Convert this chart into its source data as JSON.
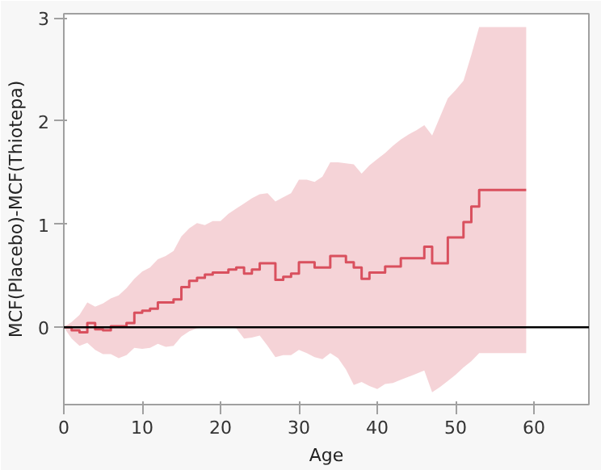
{
  "chart_data": {
    "type": "step",
    "xlabel": "Age",
    "ylabel": "MCF(Placebo)-MCF(Thiotepa)",
    "x": [
      0,
      1,
      2,
      3,
      4,
      5,
      6,
      7,
      8,
      9,
      10,
      11,
      12,
      13,
      14,
      15,
      16,
      17,
      18,
      19,
      20,
      21,
      22,
      23,
      24,
      25,
      26,
      27,
      28,
      29,
      30,
      31,
      32,
      33,
      34,
      35,
      36,
      37,
      38,
      39,
      40,
      41,
      42,
      43,
      44,
      45,
      46,
      47,
      48,
      49,
      50,
      51,
      52,
      53,
      54,
      55,
      56,
      57,
      58,
      59
    ],
    "series": [
      {
        "color": "#d9505e",
        "values": [
          0,
          -0.03,
          -0.05,
          0.04,
          -0.02,
          -0.03,
          0.01,
          0.01,
          0.04,
          0.14,
          0.16,
          0.18,
          0.24,
          0.24,
          0.27,
          0.39,
          0.45,
          0.48,
          0.51,
          0.53,
          0.53,
          0.56,
          0.58,
          0.52,
          0.56,
          0.62,
          0.62,
          0.46,
          0.49,
          0.52,
          0.63,
          0.63,
          0.58,
          0.58,
          0.69,
          0.69,
          0.63,
          0.58,
          0.47,
          0.53,
          0.53,
          0.59,
          0.59,
          0.67,
          0.67,
          0.67,
          0.78,
          0.62,
          0.62,
          0.87,
          0.87,
          1.02,
          1.17,
          1.33,
          1.33,
          1.33,
          1.33,
          1.33,
          1.33,
          1.33
        ],
        "upper": [
          0,
          0.05,
          0.12,
          0.24,
          0.2,
          0.23,
          0.28,
          0.31,
          0.38,
          0.47,
          0.54,
          0.58,
          0.66,
          0.69,
          0.74,
          0.88,
          0.96,
          1.01,
          0.99,
          1.03,
          1.03,
          1.1,
          1.15,
          1.2,
          1.25,
          1.29,
          1.3,
          1.22,
          1.26,
          1.3,
          1.43,
          1.43,
          1.41,
          1.46,
          1.6,
          1.6,
          1.59,
          1.58,
          1.49,
          1.57,
          1.63,
          1.69,
          1.76,
          1.82,
          1.87,
          1.91,
          1.96,
          1.86,
          2.04,
          2.22,
          2.3,
          2.39,
          2.64,
          2.91,
          2.91,
          2.91,
          2.91,
          2.91,
          2.91,
          2.91
        ],
        "lower": [
          0,
          -0.11,
          -0.18,
          -0.15,
          -0.22,
          -0.26,
          -0.26,
          -0.3,
          -0.27,
          -0.2,
          -0.21,
          -0.2,
          -0.16,
          -0.19,
          -0.18,
          -0.09,
          -0.04,
          -0.01,
          0,
          0,
          0,
          0,
          -0.01,
          -0.11,
          -0.1,
          -0.08,
          -0.18,
          -0.29,
          -0.27,
          -0.27,
          -0.22,
          -0.25,
          -0.29,
          -0.31,
          -0.25,
          -0.3,
          -0.41,
          -0.56,
          -0.53,
          -0.57,
          -0.6,
          -0.55,
          -0.54,
          -0.51,
          -0.48,
          -0.45,
          -0.42,
          -0.63,
          -0.58,
          -0.52,
          -0.46,
          -0.39,
          -0.33,
          -0.25,
          -0.25,
          -0.25,
          -0.25,
          -0.25,
          -0.25,
          -0.25
        ]
      }
    ],
    "xlim": [
      0,
      67
    ],
    "ylim": [
      -0.75,
      3.04
    ],
    "xticks": [
      0,
      10,
      20,
      30,
      40,
      50,
      60
    ],
    "yticks": [
      0,
      1,
      2,
      3
    ],
    "ref_lines": [
      {
        "axis": "y",
        "value": 0,
        "color": "#000000"
      }
    ],
    "grid": false,
    "marker": "none",
    "line_style": "solid"
  }
}
